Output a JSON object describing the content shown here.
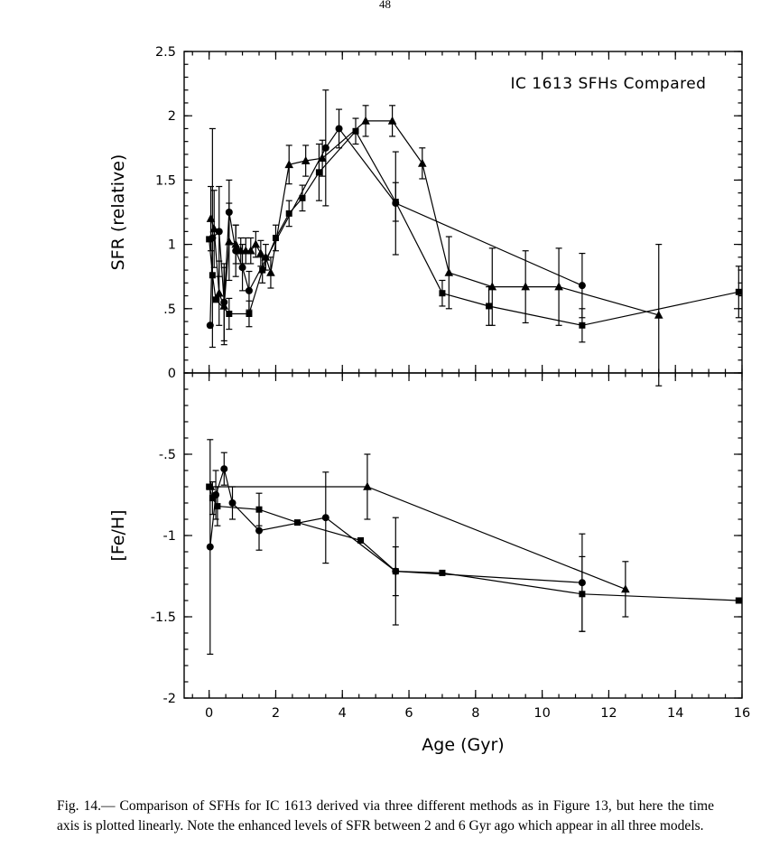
{
  "page": {
    "number": "48"
  },
  "caption": {
    "label": "Fig. 14.—",
    "text": " Comparison of SFHs for IC 1613 derived via three different methods as in Figure 13, but here the time axis is plotted linearly. Note the enhanced levels of SFR between 2 and 6 Gyr ago which appear in all three models."
  },
  "chart_data": [
    {
      "type": "line",
      "panel": "top",
      "title": "IC 1613 SFHs Compared",
      "xlabel": "",
      "ylabel": "SFR (relative)",
      "xlim": [
        -0.75,
        16.0
      ],
      "ylim": [
        0,
        2.5
      ],
      "xticks": [
        0,
        2,
        4,
        6,
        8,
        10,
        12,
        14,
        16
      ],
      "xtick_labels": [],
      "x_minor_step": 0.5,
      "yticks": [
        0,
        0.5,
        1,
        1.5,
        2,
        2.5
      ],
      "ytick_labels": [
        "0",
        ".5",
        "1",
        "1.5",
        "2",
        "2.5"
      ],
      "y_minor_step": 0.1,
      "grid": false,
      "legend": "none",
      "series": [
        {
          "name": "circle-series",
          "marker": "circle",
          "points": [
            [
              0.03,
              0.37,
              null
            ],
            [
              0.1,
              1.05,
              0.85
            ],
            [
              0.3,
              1.1,
              0.35
            ],
            [
              0.45,
              0.55,
              0.3
            ],
            [
              0.6,
              1.25,
              0.25
            ],
            [
              0.8,
              0.95,
              0.2
            ],
            [
              1.0,
              0.82,
              0.18
            ],
            [
              1.2,
              0.64,
              0.15
            ],
            [
              3.5,
              1.75,
              0.45
            ],
            [
              3.9,
              1.9,
              0.15
            ],
            [
              5.6,
              1.32,
              0.4
            ],
            [
              11.2,
              0.68,
              0.25
            ]
          ]
        },
        {
          "name": "triangle-series",
          "marker": "triangle",
          "points": [
            [
              0.05,
              1.2,
              0.25
            ],
            [
              0.15,
              1.12,
              0.3
            ],
            [
              0.3,
              0.62,
              0.25
            ],
            [
              0.45,
              0.52,
              0.3
            ],
            [
              0.6,
              1.02,
              0.3
            ],
            [
              0.8,
              1.0,
              0.15
            ],
            [
              0.95,
              0.95,
              0.1
            ],
            [
              1.1,
              0.95,
              0.1
            ],
            [
              1.25,
              0.95,
              0.1
            ],
            [
              1.4,
              1.0,
              0.1
            ],
            [
              1.55,
              0.93,
              0.1
            ],
            [
              1.7,
              0.9,
              0.1
            ],
            [
              1.85,
              0.78,
              0.12
            ],
            [
              2.4,
              1.62,
              0.15
            ],
            [
              2.9,
              1.65,
              0.12
            ],
            [
              3.4,
              1.67,
              0.14
            ],
            [
              4.7,
              1.96,
              0.12
            ],
            [
              5.5,
              1.96,
              0.12
            ],
            [
              6.4,
              1.63,
              0.12
            ],
            [
              7.2,
              0.78,
              0.28
            ],
            [
              8.5,
              0.67,
              0.3
            ],
            [
              9.5,
              0.67,
              0.28
            ],
            [
              10.5,
              0.67,
              0.3
            ],
            [
              13.5,
              0.45,
              0.55
            ]
          ]
        },
        {
          "name": "square-series",
          "marker": "square",
          "points": [
            [
              0.0,
              1.04,
              null
            ],
            [
              0.1,
              0.76,
              null
            ],
            [
              0.2,
              0.57,
              null
            ],
            [
              0.6,
              0.46,
              0.12
            ],
            [
              1.2,
              0.46,
              0.1
            ],
            [
              1.6,
              0.8,
              0.1
            ],
            [
              2.0,
              1.05,
              0.1
            ],
            [
              2.4,
              1.24,
              0.1
            ],
            [
              2.8,
              1.36,
              0.1
            ],
            [
              3.3,
              1.56,
              0.22
            ],
            [
              4.4,
              1.88,
              0.1
            ],
            [
              5.6,
              1.33,
              0.15
            ],
            [
              7.0,
              0.62,
              0.1
            ],
            [
              8.4,
              0.52,
              0.15
            ],
            [
              11.2,
              0.37,
              0.13
            ],
            [
              15.9,
              0.63,
              0.2
            ]
          ]
        }
      ]
    },
    {
      "type": "line",
      "panel": "bottom",
      "title": "",
      "xlabel": "Age (Gyr)",
      "ylabel": "[Fe/H]",
      "xlim": [
        -0.75,
        16.0
      ],
      "ylim": [
        -2,
        0
      ],
      "xticks": [
        0,
        2,
        4,
        6,
        8,
        10,
        12,
        14,
        16
      ],
      "xtick_labels": [
        "0",
        "2",
        "4",
        "6",
        "8",
        "10",
        "12",
        "14",
        "16"
      ],
      "x_minor_step": 0.5,
      "yticks": [
        -0.5,
        -1,
        -1.5,
        -2
      ],
      "ytick_labels": [
        "-.5",
        "-1",
        "-1.5",
        "-2"
      ],
      "y_minor_step": 0.1,
      "grid": false,
      "legend": "none",
      "series": [
        {
          "name": "circle-series",
          "marker": "circle",
          "points": [
            [
              0.03,
              -1.07,
              0.66
            ],
            [
              0.2,
              -0.75,
              0.15
            ],
            [
              0.45,
              -0.59,
              0.1
            ],
            [
              0.7,
              -0.8,
              0.1
            ],
            [
              1.5,
              -0.97,
              0.12
            ],
            [
              3.5,
              -0.89,
              0.28
            ],
            [
              5.6,
              -1.22,
              0.33
            ],
            [
              11.2,
              -1.29,
              0.3
            ]
          ]
        },
        {
          "name": "triangle-series",
          "marker": "triangle",
          "points": [
            [
              0.05,
              -0.7,
              null
            ],
            [
              4.75,
              -0.7,
              0.2
            ],
            [
              12.5,
              -1.33,
              0.17
            ]
          ]
        },
        {
          "name": "square-series",
          "marker": "square",
          "points": [
            [
              0.0,
              -0.7,
              null
            ],
            [
              0.1,
              -0.77,
              0.1
            ],
            [
              0.25,
              -0.82,
              0.12
            ],
            [
              1.5,
              -0.84,
              0.1
            ],
            [
              2.65,
              -0.92,
              null
            ],
            [
              4.55,
              -1.03,
              null
            ],
            [
              5.6,
              -1.22,
              0.15
            ],
            [
              7.0,
              -1.23,
              null
            ],
            [
              11.2,
              -1.36,
              0.23
            ],
            [
              15.9,
              -1.4,
              null
            ]
          ]
        }
      ]
    }
  ]
}
